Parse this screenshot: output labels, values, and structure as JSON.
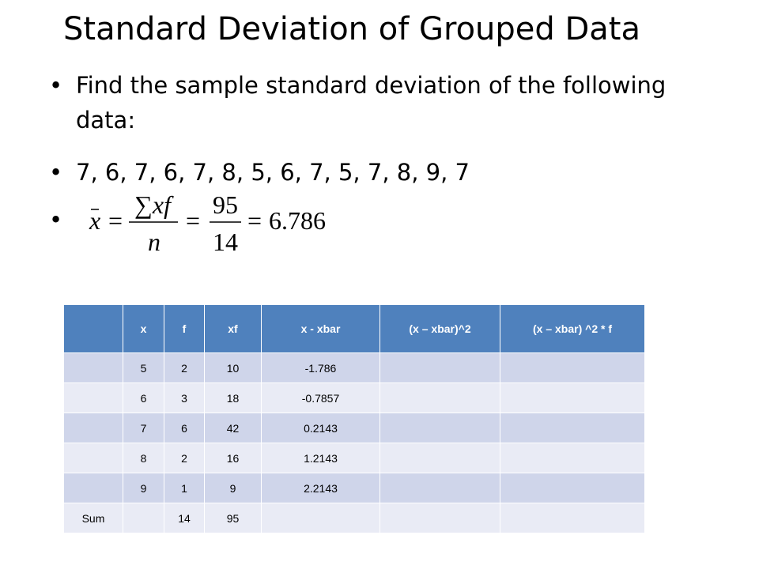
{
  "title": "Standard Deviation of Grouped Data",
  "bullets": [
    "Find the sample standard deviation of the following data:",
    "7, 6, 7, 6, 7, 8, 5, 6, 7, 5, 7, 8, 9, 7"
  ],
  "formula": {
    "lhs": "x",
    "sum": "∑xf",
    "n": "n",
    "num": "95",
    "den": "14",
    "result": "6.786"
  },
  "table": {
    "header": [
      "x",
      "f",
      "xf",
      "x - xbar",
      "(x – xbar)^2",
      "(x – xbar) ^2 * f"
    ],
    "rows": [
      {
        "x": 5,
        "f": 2,
        "xf": 10,
        "dev": -1.786
      },
      {
        "x": 6,
        "f": 3,
        "xf": 18,
        "dev": -0.7857
      },
      {
        "x": 7,
        "f": 6,
        "xf": 42,
        "dev": 0.2143
      },
      {
        "x": 8,
        "f": 2,
        "xf": 16,
        "dev": 1.2143
      },
      {
        "x": 9,
        "f": 1,
        "xf": 9,
        "dev": 2.2143
      }
    ],
    "sum": {
      "label": "Sum",
      "f": 14,
      "xf": 95
    }
  }
}
